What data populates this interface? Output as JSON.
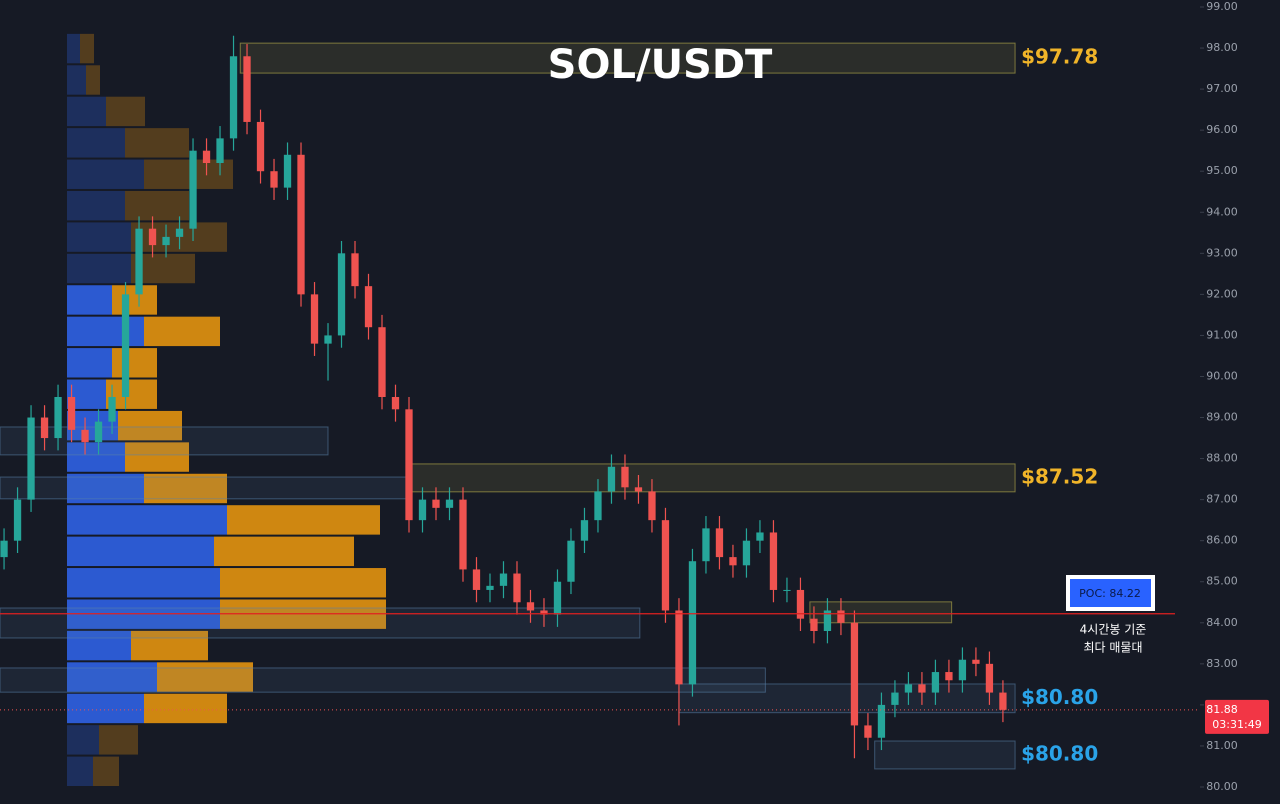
{
  "chart_data": {
    "type": "candlestick",
    "title": "SOL/USDT",
    "open": [
      85.6,
      86.0,
      87.0,
      89.0,
      88.5,
      89.5,
      88.7,
      88.4,
      88.9,
      89.5,
      92.0,
      93.6,
      93.2,
      93.4,
      93.6,
      95.5,
      95.2,
      95.8,
      97.8,
      96.2,
      95.0,
      94.6,
      95.4,
      92.0,
      90.8,
      91.0,
      93.0,
      92.2,
      91.2,
      89.5,
      89.2,
      86.5,
      87.0,
      86.8,
      87.0,
      85.3,
      84.8,
      84.9,
      85.2,
      84.5,
      84.3,
      84.2,
      85.0,
      86.0,
      86.5,
      87.2,
      87.8,
      87.3,
      87.2,
      86.5,
      84.3,
      82.5,
      85.5,
      86.3,
      85.6,
      85.4,
      86.0,
      86.2,
      84.8,
      84.8,
      84.1,
      83.8,
      84.3,
      84.0,
      81.5,
      81.2,
      82.0,
      82.3,
      82.5,
      82.3,
      82.8,
      82.6,
      83.1,
      83.0,
      82.3
    ],
    "high": [
      86.3,
      87.3,
      89.3,
      89.3,
      89.8,
      89.8,
      89.0,
      89.2,
      89.8,
      92.3,
      93.9,
      93.9,
      93.7,
      93.9,
      95.8,
      95.8,
      96.1,
      98.3,
      98.1,
      96.5,
      95.3,
      95.7,
      95.7,
      92.3,
      91.3,
      93.3,
      93.3,
      92.5,
      91.5,
      89.8,
      89.5,
      87.3,
      87.3,
      87.3,
      87.3,
      85.6,
      85.2,
      85.5,
      85.5,
      84.8,
      84.6,
      85.3,
      86.3,
      86.8,
      87.5,
      88.1,
      88.1,
      87.6,
      87.5,
      86.8,
      84.6,
      85.8,
      86.6,
      86.6,
      85.9,
      86.3,
      86.5,
      86.5,
      85.1,
      85.1,
      84.4,
      84.6,
      84.6,
      84.3,
      81.8,
      82.3,
      82.6,
      82.8,
      82.8,
      83.1,
      83.1,
      83.4,
      83.4,
      83.3,
      82.6
    ],
    "low": [
      85.3,
      85.7,
      86.7,
      88.2,
      88.2,
      88.4,
      88.1,
      88.1,
      88.6,
      89.2,
      91.7,
      92.9,
      92.9,
      93.1,
      93.3,
      94.9,
      94.9,
      95.5,
      95.9,
      94.7,
      94.3,
      94.3,
      91.7,
      90.5,
      89.9,
      90.7,
      91.9,
      90.9,
      89.2,
      88.9,
      86.2,
      86.2,
      86.5,
      86.5,
      85.0,
      84.5,
      84.5,
      84.6,
      84.2,
      84.0,
      83.9,
      83.9,
      84.7,
      85.7,
      86.2,
      86.9,
      87.0,
      86.9,
      86.2,
      84.0,
      81.5,
      82.2,
      85.2,
      85.3,
      85.1,
      85.1,
      85.7,
      84.5,
      84.5,
      83.8,
      83.5,
      83.5,
      83.7,
      80.7,
      80.9,
      80.9,
      81.7,
      82.0,
      82.0,
      82.0,
      82.3,
      82.3,
      82.7,
      82.0,
      81.58
    ],
    "close": [
      86.0,
      87.0,
      89.0,
      88.5,
      89.5,
      88.7,
      88.4,
      88.9,
      89.5,
      92.0,
      93.6,
      93.2,
      93.4,
      93.6,
      95.5,
      95.2,
      95.8,
      97.8,
      96.2,
      95.0,
      94.6,
      95.4,
      92.0,
      90.8,
      91.0,
      93.0,
      92.2,
      91.2,
      89.5,
      89.2,
      86.5,
      87.0,
      86.8,
      87.0,
      85.3,
      84.8,
      84.9,
      85.2,
      84.5,
      84.3,
      84.2,
      85.0,
      86.0,
      86.5,
      87.2,
      87.8,
      87.3,
      87.2,
      86.5,
      84.3,
      82.5,
      85.5,
      86.3,
      85.6,
      85.4,
      86.0,
      86.2,
      84.8,
      84.8,
      84.1,
      83.8,
      84.3,
      84.0,
      81.5,
      81.2,
      82.0,
      82.3,
      82.5,
      82.3,
      82.8,
      82.6,
      83.1,
      83.0,
      82.3,
      81.88
    ],
    "up_color": "#26a69a",
    "down_color": "#ef5350",
    "xlim": [
      -0.3,
      88.6
    ],
    "ylim": [
      80,
      99
    ],
    "yticks": [
      {
        "value": 80,
        "label": "80.00"
      },
      {
        "value": 81,
        "label": "81.00"
      },
      {
        "value": 82,
        "label": "82.00"
      },
      {
        "value": 83,
        "label": "83.00"
      },
      {
        "value": 84,
        "label": "84.00"
      },
      {
        "value": 85,
        "label": "85.00"
      },
      {
        "value": 86,
        "label": "86.00"
      },
      {
        "value": 87,
        "label": "87.00"
      },
      {
        "value": 88,
        "label": "88.00"
      },
      {
        "value": 89,
        "label": "89.00"
      },
      {
        "value": 90,
        "label": "90.00"
      },
      {
        "value": 91,
        "label": "91.00"
      },
      {
        "value": 92,
        "label": "92.00"
      },
      {
        "value": 93,
        "label": "93.00"
      },
      {
        "value": 94,
        "label": "94.00"
      },
      {
        "value": 95,
        "label": "95.00"
      },
      {
        "value": 96,
        "label": "96.00"
      },
      {
        "value": 97,
        "label": "97.00"
      },
      {
        "value": 98,
        "label": "98.00"
      },
      {
        "value": 99,
        "label": "99.00"
      }
    ],
    "volume_profile": {
      "range": [
        80,
        98.37
      ],
      "buy": [
        26,
        32,
        77,
        90,
        64,
        153,
        153,
        147,
        160,
        77,
        58,
        51,
        39,
        45,
        77,
        45,
        64,
        64,
        58,
        77,
        58,
        39,
        19,
        13
      ],
      "sell": [
        26,
        39,
        83,
        96,
        77,
        166,
        166,
        140,
        153,
        83,
        64,
        64,
        51,
        45,
        76,
        45,
        64,
        96,
        64,
        89,
        64,
        39,
        14,
        14
      ],
      "in_value_area": [
        false,
        false,
        true,
        true,
        true,
        true,
        true,
        true,
        true,
        true,
        true,
        true,
        true,
        true,
        true,
        true,
        false,
        false,
        false,
        false,
        false,
        false,
        false,
        false
      ],
      "buy_color": "#2f5fe0",
      "sell_color": "#e0900f"
    },
    "zones": [
      {
        "top": 98.12,
        "bottom": 97.39,
        "from": 17.5,
        "to": 74.9,
        "color": "#c8be50",
        "label": "$97.78",
        "label_color": "#f0b429"
      },
      {
        "top": 87.87,
        "bottom": 87.19,
        "from": 30,
        "to": 74.9,
        "color": "#c8be50",
        "label": "$87.52",
        "label_color": "#f0b429"
      },
      {
        "top": 88.77,
        "bottom": 88.09,
        "from": -0.3,
        "to": 24,
        "color": "#5a82aa"
      },
      {
        "top": 87.55,
        "bottom": 87.02,
        "from": -0.3,
        "to": 30,
        "color": "#5a82aa"
      },
      {
        "top": 84.36,
        "bottom": 83.63,
        "from": -0.3,
        "to": 47.1,
        "color": "#5a82aa"
      },
      {
        "top": 84.51,
        "bottom": 84.0,
        "from": 59.7,
        "to": 70.2,
        "color": "#c8be50"
      },
      {
        "top": 82.9,
        "bottom": 82.31,
        "from": -0.3,
        "to": 56.4,
        "color": "#5a82aa"
      },
      {
        "top": 82.51,
        "bottom": 81.81,
        "from": 50,
        "to": 74.9,
        "color": "#5a82aa",
        "label": "$80.80",
        "label_color": "#2aa3e8"
      },
      {
        "top": 81.12,
        "bottom": 80.44,
        "from": 64.5,
        "to": 74.9,
        "color": "#5a82aa",
        "label": "$80.80",
        "label_color": "#2aa3e8"
      }
    ],
    "poc": {
      "value": 84.22,
      "label": "POC: 84.22",
      "color": "#e02020"
    },
    "annotation": [
      "4시간봉 기준",
      "최다 매물대"
    ],
    "last_price": {
      "value": 81.88,
      "countdown": "03:31:49"
    }
  }
}
